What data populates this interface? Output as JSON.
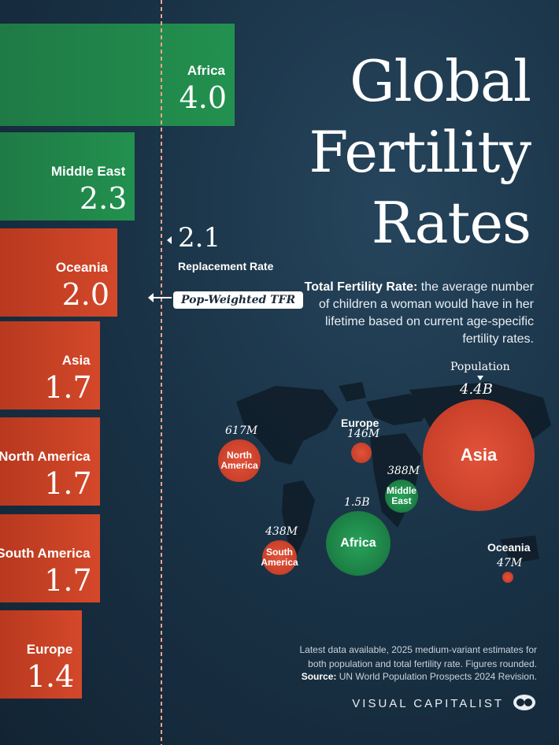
{
  "header": {
    "title_lines": [
      "Global",
      "Fertility",
      "Rates"
    ],
    "subtitle_bold": "Total Fertility Rate:",
    "subtitle_rest": "the average number of children a woman would have in her lifetime based on current age-specific fertility rates."
  },
  "reference": {
    "value": "2.1",
    "label": "Replacement Rate",
    "pop_weighted_label": "Pop-Weighted TFR"
  },
  "chart_data": {
    "type": "bar",
    "orientation": "horizontal",
    "title": "Global Fertility Rates",
    "categories": [
      "Africa",
      "Middle East",
      "Oceania",
      "Asia",
      "North America",
      "South America",
      "Europe"
    ],
    "values": [
      4.0,
      2.3,
      2.0,
      1.7,
      1.7,
      1.7,
      1.4
    ],
    "value_labels": [
      "4.0",
      "2.3",
      "2.0",
      "1.7",
      "1.7",
      "1.7",
      "1.4"
    ],
    "replacement_rate": 2.1,
    "pop_weighted_tfr": 2.0,
    "colors": {
      "above_replacement": "#22914f",
      "below_replacement": "#d4482a"
    },
    "bubbles": {
      "legend_title": "Population",
      "population_millions": [
        1500,
        388,
        47,
        4400,
        617,
        438,
        146
      ],
      "population_labels": [
        "1.5B",
        "388M",
        "47M",
        "4.4B",
        "617M",
        "438M",
        "146M"
      ]
    }
  },
  "footer": {
    "note": "Latest data available, 2025 medium-variant estimates for both population and total fertility rate. Figures rounded.",
    "source_bold": "Source:",
    "source_rest": "UN World Population Prospects 2024 Revision.",
    "brand": "VISUAL CAPITALIST"
  }
}
